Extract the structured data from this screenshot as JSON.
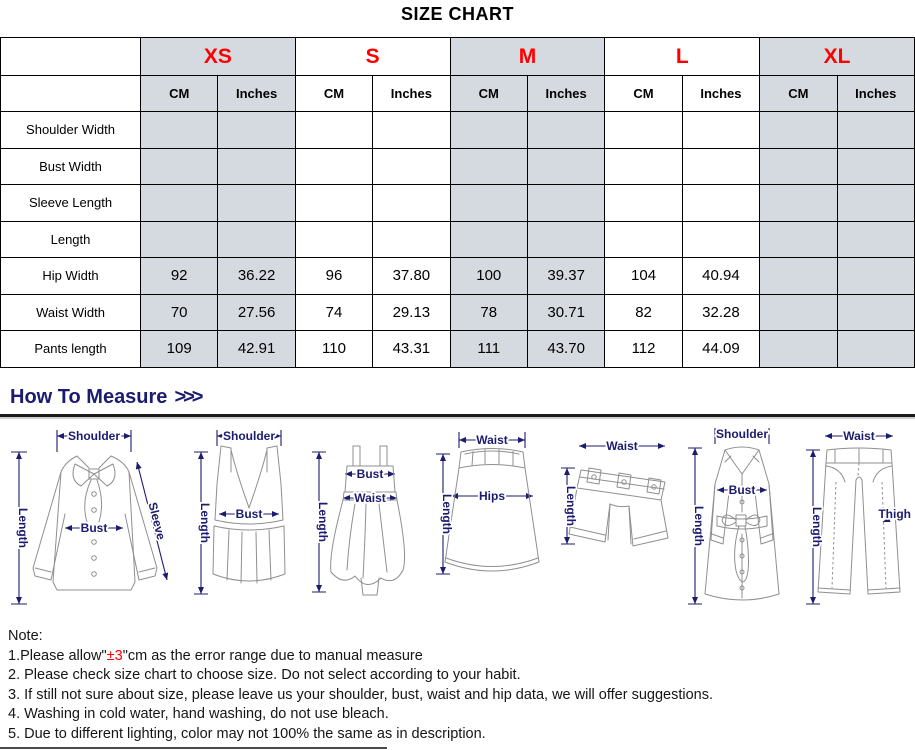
{
  "page": {
    "title": "SIZE CHART"
  },
  "colors": {
    "accent_red": "#FF0000",
    "navy_label": "#1B1B6F",
    "shaded_cell": "#D5DAE0"
  },
  "size_table": {
    "unit_headers": [
      "CM",
      "Inches"
    ],
    "sizes": [
      {
        "label": "XS",
        "shaded": true
      },
      {
        "label": "S",
        "shaded": false
      },
      {
        "label": "M",
        "shaded": true
      },
      {
        "label": "L",
        "shaded": false
      },
      {
        "label": "XL",
        "shaded": true
      }
    ],
    "rows": [
      {
        "label": "Shoulder Width",
        "values": [
          "",
          "",
          "",
          "",
          "",
          "",
          "",
          "",
          "",
          ""
        ]
      },
      {
        "label": "Bust Width",
        "values": [
          "",
          "",
          "",
          "",
          "",
          "",
          "",
          "",
          "",
          ""
        ]
      },
      {
        "label": "Sleeve Length",
        "values": [
          "",
          "",
          "",
          "",
          "",
          "",
          "",
          "",
          "",
          ""
        ]
      },
      {
        "label": "Length",
        "values": [
          "",
          "",
          "",
          "",
          "",
          "",
          "",
          "",
          "",
          ""
        ]
      },
      {
        "label": "Hip Width",
        "values": [
          "92",
          "36.22",
          "96",
          "37.80",
          "100",
          "39.37",
          "104",
          "40.94",
          "",
          ""
        ]
      },
      {
        "label": "Waist Width",
        "values": [
          "70",
          "27.56",
          "74",
          "29.13",
          "78",
          "30.71",
          "82",
          "32.28",
          "",
          ""
        ]
      },
      {
        "label": "Pants length",
        "values": [
          "109",
          "42.91",
          "110",
          "43.31",
          "111",
          "43.70",
          "112",
          "44.09",
          "",
          ""
        ]
      }
    ]
  },
  "measure": {
    "heading": "How To Measure",
    "chevrons": ">>>",
    "diagrams": [
      {
        "name": "blouse",
        "labels": {
          "shoulder": "Shoulder",
          "length": "Length",
          "bust": "Bust",
          "sleeve": "Sleeve"
        }
      },
      {
        "name": "tank-top",
        "labels": {
          "shoulder": "Shoulder",
          "length": "Length",
          "bust": "Bust"
        }
      },
      {
        "name": "dress",
        "labels": {
          "bust": "Bust",
          "waist": "Waist",
          "length": "Length"
        }
      },
      {
        "name": "skirt",
        "labels": {
          "waist": "Waist",
          "length": "Length",
          "hips": "Hips"
        }
      },
      {
        "name": "shorts",
        "labels": {
          "waist": "Waist",
          "length": "Length"
        }
      },
      {
        "name": "coat",
        "labels": {
          "shoulder": "Shoulder",
          "length": "Length",
          "bust": "Bust"
        }
      },
      {
        "name": "pants",
        "labels": {
          "waist": "Waist",
          "length": "Length",
          "thigh": "Thigh"
        }
      }
    ]
  },
  "notes": {
    "heading": "Note:",
    "line1": {
      "pre": "1.Please allow\"",
      "highlight": "±3",
      "post": "\"cm as the error range due to manual measure"
    },
    "line2": "2. Please check size chart to choose size. Do not select according to your habit.",
    "line3": "3. If still not sure about size, please leave us your shoulder, bust, waist and hip data, we will offer suggestions.",
    "line4": "4. Washing in cold water, hand washing, do not use bleach.",
    "line5": "5. Due to different lighting, color may not 100% the same as in description."
  }
}
